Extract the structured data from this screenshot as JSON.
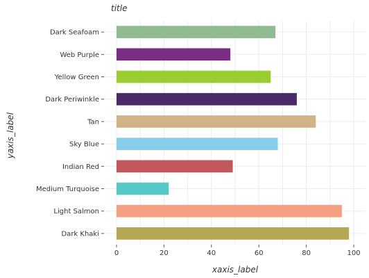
{
  "chart_data": {
    "type": "bar",
    "orientation": "horizontal",
    "title": "title",
    "xlabel": "xaxis_label",
    "ylabel": "yaxis_label",
    "xlim": [
      0,
      100
    ],
    "xticks": [
      0,
      20,
      40,
      60,
      80,
      100
    ],
    "grid": true,
    "legend": "none",
    "categories": [
      "Dark Khaki",
      "Light Salmon",
      "Medium Turquoise",
      "Indian Red",
      "Sky Blue",
      "Tan",
      "Dark Periwinkle",
      "Yellow Green",
      "Web Purple",
      "Dark Seafoam"
    ],
    "values": [
      98,
      95,
      22,
      49,
      68,
      84,
      76,
      65,
      48,
      67
    ],
    "colors": [
      "#b5a654",
      "#f3a182",
      "#54c9c4",
      "#c1585d",
      "#87ceec",
      "#d2b386",
      "#4b2b67",
      "#9acd32",
      "#7b2d84",
      "#8fbc8f"
    ]
  }
}
